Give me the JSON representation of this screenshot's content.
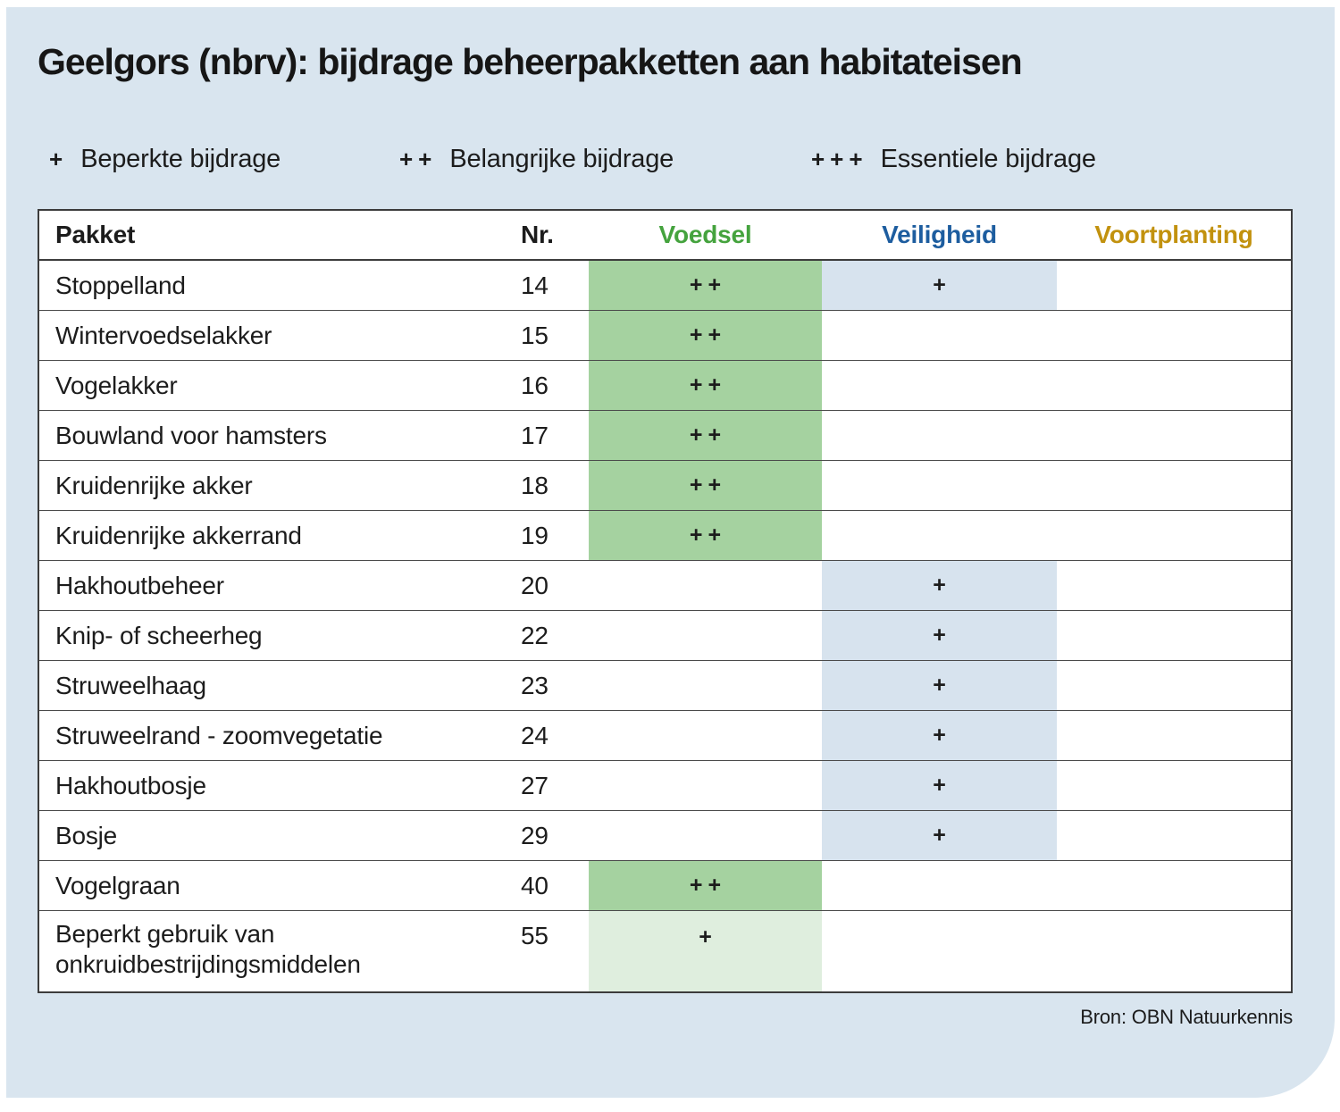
{
  "title": "Geelgors (nbrv): bijdrage beheerpakketten aan habitateisen",
  "legend": [
    {
      "symbol": "+",
      "label": "Beperkte bijdrage"
    },
    {
      "symbol": "++",
      "label": "Belangrijke bijdrage"
    },
    {
      "symbol": "+++",
      "label": "Essentiele bijdrage"
    }
  ],
  "source": "Bron: OBN Natuurkennis",
  "colors": {
    "panel_background": "#d9e5ef",
    "cell_blue": "#d7e3ee",
    "cell_green_mid": "#a5d2a0",
    "cell_green_light": "#dfeede",
    "header_voedsel": "#45a33e",
    "header_veiligheid": "#1d5d9f",
    "header_voortplanting": "#c2920f"
  },
  "table": {
    "columns": [
      {
        "key": "pakket",
        "label": "Pakket"
      },
      {
        "key": "nr",
        "label": "Nr."
      },
      {
        "key": "voedsel",
        "label": "Voedsel"
      },
      {
        "key": "veiligheid",
        "label": "Veiligheid"
      },
      {
        "key": "voortplanting",
        "label": "Voortplanting"
      }
    ],
    "rows": [
      {
        "pakket": "Stoppelland",
        "nr": "14",
        "voedsel": {
          "mark": "++",
          "fill": "green-mid"
        },
        "veiligheid": {
          "mark": "+",
          "fill": "blue"
        },
        "voortplanting": {
          "mark": "",
          "fill": "none"
        },
        "tall": false
      },
      {
        "pakket": "Wintervoedselakker",
        "nr": "15",
        "voedsel": {
          "mark": "++",
          "fill": "green-mid"
        },
        "veiligheid": {
          "mark": "",
          "fill": "none"
        },
        "voortplanting": {
          "mark": "",
          "fill": "none"
        },
        "tall": false
      },
      {
        "pakket": "Vogelakker",
        "nr": "16",
        "voedsel": {
          "mark": "++",
          "fill": "green-mid"
        },
        "veiligheid": {
          "mark": "",
          "fill": "none"
        },
        "voortplanting": {
          "mark": "",
          "fill": "none"
        },
        "tall": false
      },
      {
        "pakket": "Bouwland voor hamsters",
        "nr": "17",
        "voedsel": {
          "mark": "++",
          "fill": "green-mid"
        },
        "veiligheid": {
          "mark": "",
          "fill": "none"
        },
        "voortplanting": {
          "mark": "",
          "fill": "none"
        },
        "tall": false
      },
      {
        "pakket": "Kruidenrijke akker",
        "nr": "18",
        "voedsel": {
          "mark": "++",
          "fill": "green-mid"
        },
        "veiligheid": {
          "mark": "",
          "fill": "none"
        },
        "voortplanting": {
          "mark": "",
          "fill": "none"
        },
        "tall": false
      },
      {
        "pakket": "Kruidenrijke akkerrand",
        "nr": "19",
        "voedsel": {
          "mark": "++",
          "fill": "green-mid"
        },
        "veiligheid": {
          "mark": "",
          "fill": "none"
        },
        "voortplanting": {
          "mark": "",
          "fill": "none"
        },
        "tall": false
      },
      {
        "pakket": "Hakhoutbeheer",
        "nr": "20",
        "voedsel": {
          "mark": "",
          "fill": "none"
        },
        "veiligheid": {
          "mark": "+",
          "fill": "blue"
        },
        "voortplanting": {
          "mark": "",
          "fill": "none"
        },
        "tall": false
      },
      {
        "pakket": "Knip- of scheerheg",
        "nr": "22",
        "voedsel": {
          "mark": "",
          "fill": "none"
        },
        "veiligheid": {
          "mark": "+",
          "fill": "blue"
        },
        "voortplanting": {
          "mark": "",
          "fill": "none"
        },
        "tall": false
      },
      {
        "pakket": "Struweelhaag",
        "nr": "23",
        "voedsel": {
          "mark": "",
          "fill": "none"
        },
        "veiligheid": {
          "mark": "+",
          "fill": "blue"
        },
        "voortplanting": {
          "mark": "",
          "fill": "none"
        },
        "tall": false
      },
      {
        "pakket": "Struweelrand - zoomvegetatie",
        "nr": "24",
        "voedsel": {
          "mark": "",
          "fill": "none"
        },
        "veiligheid": {
          "mark": "+",
          "fill": "blue"
        },
        "voortplanting": {
          "mark": "",
          "fill": "none"
        },
        "tall": false
      },
      {
        "pakket": "Hakhoutbosje",
        "nr": "27",
        "voedsel": {
          "mark": "",
          "fill": "none"
        },
        "veiligheid": {
          "mark": "+",
          "fill": "blue"
        },
        "voortplanting": {
          "mark": "",
          "fill": "none"
        },
        "tall": false
      },
      {
        "pakket": "Bosje",
        "nr": "29",
        "voedsel": {
          "mark": "",
          "fill": "none"
        },
        "veiligheid": {
          "mark": "+",
          "fill": "blue"
        },
        "voortplanting": {
          "mark": "",
          "fill": "none"
        },
        "tall": false
      },
      {
        "pakket": "Vogelgraan",
        "nr": "40",
        "voedsel": {
          "mark": "++",
          "fill": "green-mid"
        },
        "veiligheid": {
          "mark": "",
          "fill": "none"
        },
        "voortplanting": {
          "mark": "",
          "fill": "none"
        },
        "tall": false
      },
      {
        "pakket": "Beperkt gebruik van onkruidbestrijdingsmiddelen",
        "nr": "55",
        "voedsel": {
          "mark": "+",
          "fill": "green-light"
        },
        "veiligheid": {
          "mark": "",
          "fill": "none"
        },
        "voortplanting": {
          "mark": "",
          "fill": "none"
        },
        "tall": true
      }
    ]
  },
  "chart_data": {
    "type": "table",
    "title": "Geelgors (nbrv): bijdrage beheerpakketten aan habitateisen",
    "columns": [
      "Pakket",
      "Nr.",
      "Voedsel",
      "Veiligheid",
      "Voortplanting"
    ],
    "rows": [
      [
        "Stoppelland",
        14,
        "++",
        "+",
        ""
      ],
      [
        "Wintervoedselakker",
        15,
        "++",
        "",
        ""
      ],
      [
        "Vogelakker",
        16,
        "++",
        "",
        ""
      ],
      [
        "Bouwland voor hamsters",
        17,
        "++",
        "",
        ""
      ],
      [
        "Kruidenrijke akker",
        18,
        "++",
        "",
        ""
      ],
      [
        "Kruidenrijke akkerrand",
        19,
        "++",
        "",
        ""
      ],
      [
        "Hakhoutbeheer",
        20,
        "",
        "+",
        ""
      ],
      [
        "Knip- of scheerheg",
        22,
        "",
        "+",
        ""
      ],
      [
        "Struweelhaag",
        23,
        "",
        "+",
        ""
      ],
      [
        "Struweelrand - zoomvegetatie",
        24,
        "",
        "+",
        ""
      ],
      [
        "Hakhoutbosje",
        27,
        "",
        "+",
        ""
      ],
      [
        "Bosje",
        29,
        "",
        "+",
        ""
      ],
      [
        "Vogelgraan",
        40,
        "++",
        "",
        ""
      ],
      [
        "Beperkt gebruik van onkruidbestrijdingsmiddelen",
        55,
        "+",
        "",
        ""
      ]
    ],
    "legend": {
      "+": "Beperkte bijdrage",
      "++": "Belangrijke bijdrage",
      "+++": "Essentiele bijdrage"
    },
    "source": "Bron: OBN Natuurkennis"
  }
}
